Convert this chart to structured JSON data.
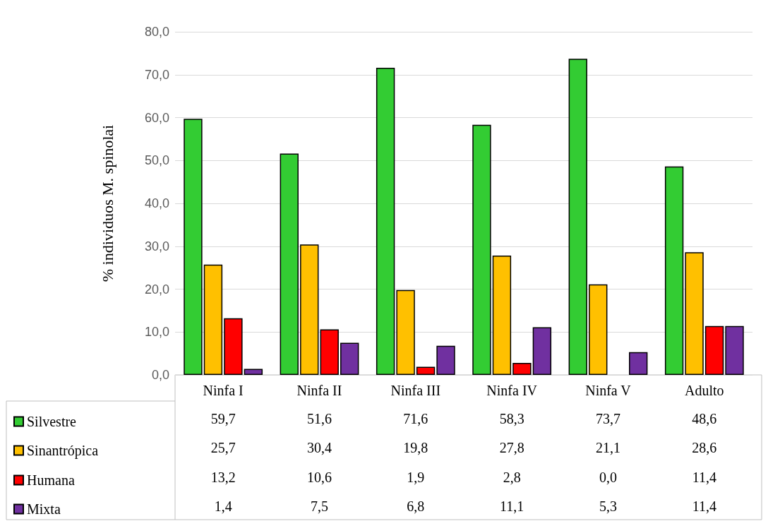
{
  "chart_data": {
    "type": "bar",
    "ylabel": "% individuos M. spinolai",
    "categories": [
      "Ninfa I",
      "Ninfa II",
      "Ninfa III",
      "Ninfa IV",
      "Ninfa V",
      "Adulto"
    ],
    "series": [
      {
        "name": "Silvestre",
        "color": "#33cc33",
        "values": [
          59.7,
          51.6,
          71.6,
          58.3,
          73.7,
          48.6
        ],
        "value_labels": [
          "59,7",
          "51,6",
          "71,6",
          "58,3",
          "73,7",
          "48,6"
        ]
      },
      {
        "name": "Sinantrópica",
        "color": "#ffc000",
        "values": [
          25.7,
          30.4,
          19.8,
          27.8,
          21.1,
          28.6
        ],
        "value_labels": [
          "25,7",
          "30,4",
          "19,8",
          "27,8",
          "21,1",
          "28,6"
        ]
      },
      {
        "name": "Humana",
        "color": "#ff0000",
        "values": [
          13.2,
          10.6,
          1.9,
          2.8,
          0.0,
          11.4
        ],
        "value_labels": [
          "13,2",
          "10,6",
          "1,9",
          "2,8",
          "0,0",
          "11,4"
        ]
      },
      {
        "name": "Mixta",
        "color": "#7030a0",
        "values": [
          1.4,
          7.5,
          6.8,
          11.1,
          5.3,
          11.4
        ],
        "value_labels": [
          "1,4",
          "7,5",
          "6,8",
          "11,1",
          "5,3",
          "11,4"
        ]
      }
    ],
    "ylim": [
      0,
      80
    ],
    "yticks": [
      {
        "value": 0,
        "label": "0,0"
      },
      {
        "value": 10,
        "label": "10,0"
      },
      {
        "value": 20,
        "label": "20,0"
      },
      {
        "value": 30,
        "label": "30,0"
      },
      {
        "value": 40,
        "label": "40,0"
      },
      {
        "value": 50,
        "label": "50,0"
      },
      {
        "value": 60,
        "label": "60,0"
      },
      {
        "value": 70,
        "label": "70,0"
      },
      {
        "value": 80,
        "label": "80,0"
      }
    ],
    "grid": "y",
    "legend": "bottom left"
  }
}
